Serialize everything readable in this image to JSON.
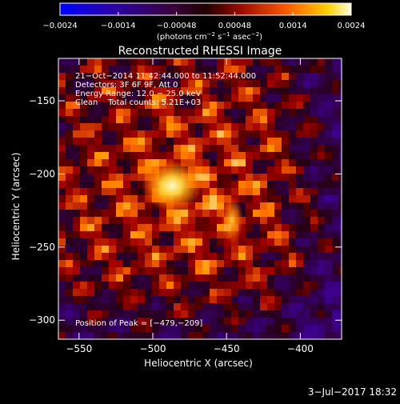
{
  "chart_data": {
    "type": "heatmap",
    "title": "Reconstructed RHESSI Image",
    "xlabel": "Heliocentric X (arcsec)",
    "ylabel": "Heliocentric Y (arcsec)",
    "xlim": [
      -564,
      -372
    ],
    "ylim": [
      -313,
      -121
    ],
    "x_ticks": [
      -550,
      -500,
      -450,
      -400
    ],
    "x_tick_labels": [
      "−550",
      "−500",
      "−450",
      "−400"
    ],
    "y_ticks": [
      -150,
      -200,
      -250,
      -300
    ],
    "y_tick_labels": [
      "−150",
      "−200",
      "−250",
      "−300"
    ],
    "peak": {
      "x": -479,
      "y": -209
    },
    "colorbar": {
      "min": -0.0024,
      "max": 0.0024,
      "tick_labels": [
        "−0.0024",
        "−0.0014",
        "−0.00048",
        "0.00048",
        "0.0014",
        "0.0024"
      ],
      "units_main": "(photons cm",
      "units_sup1": "−2",
      "units_mid1": " s",
      "units_sup2": "−1",
      "units_mid2": " asec",
      "units_sup3": "−2",
      "units_end": ")"
    },
    "annotations": [
      "21−Oct−2014 11:42:44.000 to 11:52:44.000",
      "Detectors: 3F 6F 9F, Att 0",
      "Energy Range: 12.0 − 25.0 keV",
      "Clean    Total counts: 5.21E+03"
    ],
    "peak_label": "Position of Peak = [−479,−209]",
    "footer_date": "3−Jul−2017 18:32"
  }
}
